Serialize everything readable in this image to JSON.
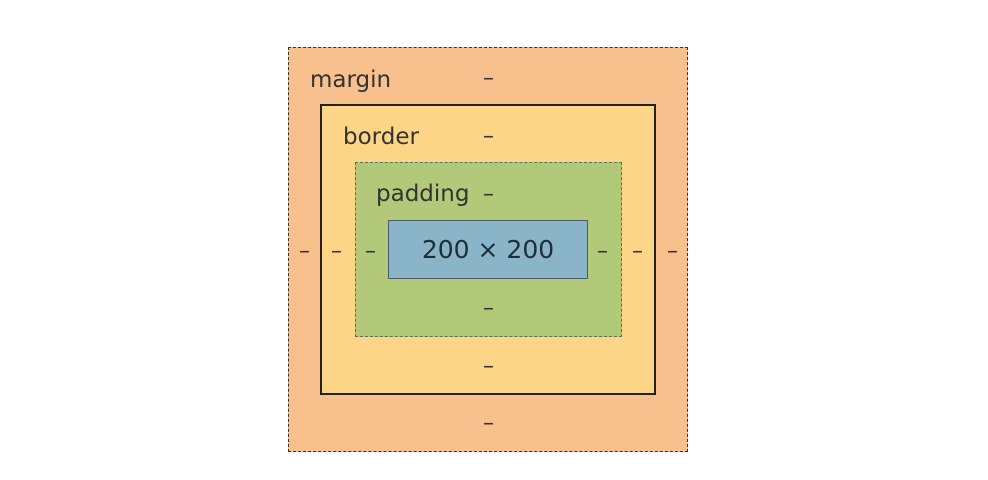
{
  "colors": {
    "margin": "#f7c08c",
    "border": "#fdd586",
    "padding": "#b3c97a",
    "content": "#8ab4c8",
    "page_background": "#ffffff"
  },
  "box_model": {
    "margin": {
      "label": "margin",
      "top": "–",
      "bottom": "–",
      "left": "–",
      "right": "–"
    },
    "border": {
      "label": "border",
      "top": "–",
      "bottom": "–",
      "left": "–",
      "right": "–"
    },
    "padding": {
      "label": "padding",
      "top": "–",
      "bottom": "–",
      "left": "–",
      "right": "–"
    },
    "content": {
      "size": "200 × 200"
    }
  }
}
